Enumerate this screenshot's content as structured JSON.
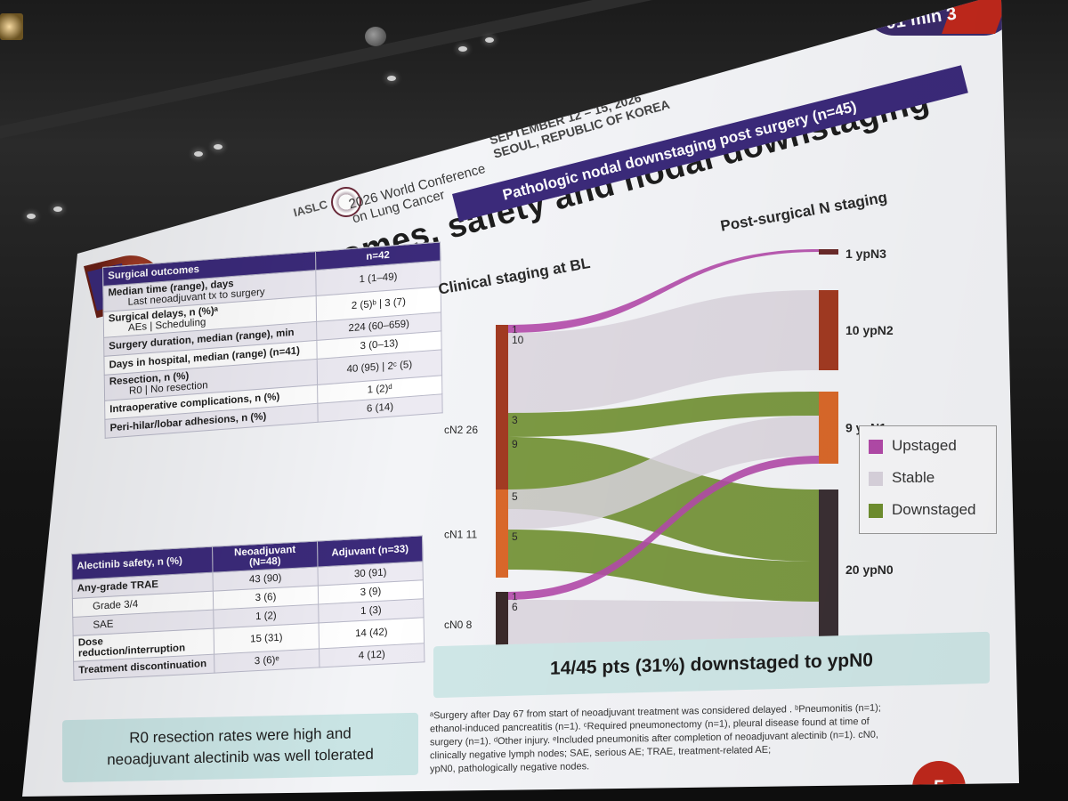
{
  "timer": {
    "text": "01 min 3"
  },
  "conference": {
    "org": "IASLC",
    "name_line1": "2026 World Conference",
    "name_line2": "on Lung Cancer",
    "dates_line1": "SEPTEMBER 12 – 15, 2026",
    "dates_line2": "SEOUL, REPUBLIC OF KOREA"
  },
  "slide_title": "Surgical outcomes, safety and nodal downstaging",
  "surgical_table": {
    "n_header": "n=42",
    "section_header": "Surgical outcomes",
    "rows": [
      {
        "label": "Median time (range), days",
        "sub": "Last neoadjuvant tx to surgery",
        "value": "1 (1–49)"
      },
      {
        "label": "Surgical delays, n (%)ᵃ",
        "sub": "AEs | Scheduling",
        "value": "2 (5)ᵇ | 3 (7)"
      },
      {
        "label": "Surgery duration, median (range), min",
        "sub": "",
        "value": "224 (60–659)"
      },
      {
        "label": "Days in hospital, median (range) (n=41)",
        "sub": "",
        "value": "3 (0–13)"
      },
      {
        "label": "Resection, n (%)",
        "sub": "R0 | No resection",
        "value": "40 (95) | 2ᶜ (5)"
      },
      {
        "label": "Intraoperative complications, n (%)",
        "sub": "",
        "value": "1 (2)ᵈ"
      },
      {
        "label": "Peri-hilar/lobar adhesions, n (%)",
        "sub": "",
        "value": "6 (14)"
      }
    ]
  },
  "safety_table": {
    "header_label": "Alectinib safety, n (%)",
    "header_neo": "Neoadjuvant (N=48)",
    "header_adj": "Adjuvant (n=33)",
    "rows": [
      {
        "label": "Any-grade TRAE",
        "neo": "43 (90)",
        "adj": "30 (91)"
      },
      {
        "label": "Grade 3/4",
        "neo": "3 (6)",
        "adj": "3 (9)"
      },
      {
        "label": "SAE",
        "neo": "1 (2)",
        "adj": "1 (3)"
      },
      {
        "label": "Dose reduction/interruption",
        "neo": "15 (31)",
        "adj": "14 (42)"
      },
      {
        "label": "Treatment discontinuation",
        "neo": "3 (6)ᵉ",
        "adj": "4 (12)"
      }
    ]
  },
  "callout_left": {
    "line1": "R0 resection rates were high and",
    "line2": "neoadjuvant alectinib was well tolerated"
  },
  "sankey": {
    "banner": "Pathologic nodal downstaging post surgery (n=45)",
    "left_title": "Clinical staging at BL",
    "right_title": "Post-surgical N staging",
    "left_nodes": [
      {
        "name": "cN2",
        "count": "26",
        "color": "#a23a22"
      },
      {
        "name": "cN1",
        "count": "11",
        "color": "#d9682a"
      },
      {
        "name": "cN0",
        "count": "8",
        "color": "#3a2a2a"
      }
    ],
    "right_nodes": [
      {
        "name": "ypN3",
        "count": "1",
        "color": "#6a2a2a"
      },
      {
        "name": "ypN2",
        "count": "10",
        "color": "#a23a22"
      },
      {
        "name": "ypN1",
        "count": "9",
        "color": "#d9682a"
      },
      {
        "name": "ypN0",
        "count": "20",
        "color": "#3a2f33"
      }
    ],
    "flows": [
      {
        "from": "cN2",
        "to": "ypN3",
        "value": "1",
        "type": "Upstaged"
      },
      {
        "from": "cN2",
        "to": "ypN2",
        "value": "10",
        "type": "Stable"
      },
      {
        "from": "cN2",
        "to": "ypN1",
        "value": "3",
        "type": "Downstaged"
      },
      {
        "from": "cN2",
        "to": "ypN0",
        "value": "9",
        "type": "Downstaged"
      },
      {
        "from": "cN1",
        "to": "ypN1",
        "value": "5",
        "type": "Stable"
      },
      {
        "from": "cN1",
        "to": "ypN0",
        "value": "5",
        "type": "Downstaged"
      },
      {
        "from": "cN0",
        "to": "ypN1",
        "value": "1",
        "type": "Upstaged"
      },
      {
        "from": "cN0",
        "to": "ypN0",
        "value": "6",
        "type": "Stable"
      }
    ],
    "legend": [
      {
        "label": "Upstaged",
        "color": "#b24aa8"
      },
      {
        "label": "Stable",
        "color": "#d9d3dd"
      },
      {
        "label": "Downstaged",
        "color": "#6f8f2f"
      }
    ],
    "summary": "14/45 pts (31%) downstaged to ypN0"
  },
  "footnotes": {
    "line1": "ᵃSurgery after Day 67 from start of neoadjuvant treatment was considered delayed . ᵇPneumonitis (n=1);",
    "line2": "ethanol-induced pancreatitis (n=1). ᶜRequired pneumonectomy (n=1), pleural disease found at time of",
    "line3": "surgery (n=1). ᵈOther injury. ᵉIncluded pneumonitis after completion of neoadjuvant alectinib (n=1). cN0,",
    "line4": "clinically negative lymph nodes; SAE, serious AE; TRAE, treatment-related AE;",
    "line5": "ypN0, pathologically negative nodes."
  },
  "page_number": "5"
}
